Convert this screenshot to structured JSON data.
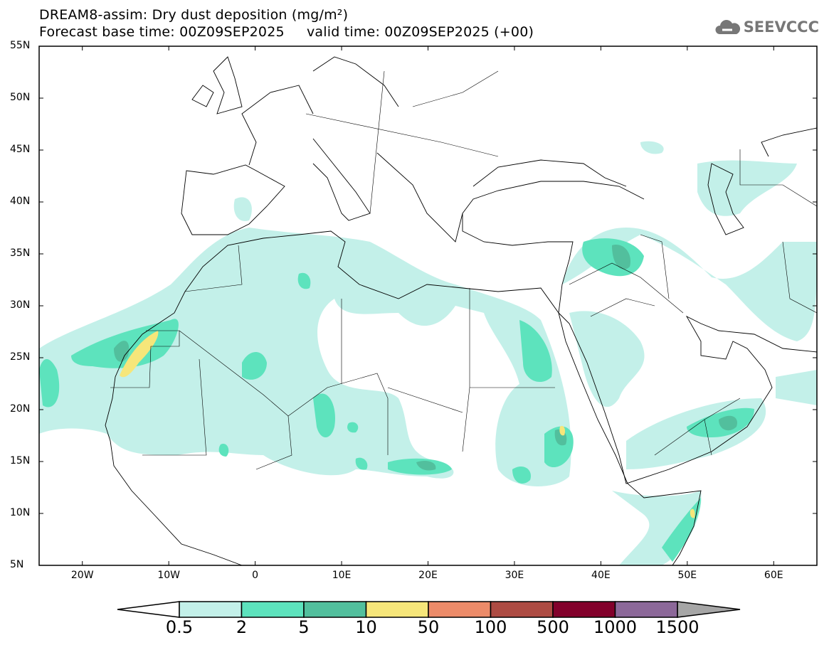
{
  "header": {
    "title": "DREAM8-assim: Dry dust deposition (mg/m²)",
    "subtitle": "Forecast base time: 00Z09SEP2025     valid time: 00Z09SEP2025 (+00)",
    "logo_text": "SEEVCCC"
  },
  "map": {
    "lat_labels": [
      "55N",
      "50N",
      "45N",
      "40N",
      "35N",
      "30N",
      "25N",
      "20N",
      "15N",
      "10N",
      "5N"
    ],
    "lon_labels": [
      "20W",
      "10W",
      "0",
      "10E",
      "20E",
      "30E",
      "40E",
      "50E",
      "60E"
    ],
    "lon_range": [
      -25,
      65
    ],
    "lat_range": [
      5,
      55
    ]
  },
  "legend": {
    "labels": [
      "0.5",
      "2",
      "5",
      "10",
      "50",
      "100",
      "500",
      "1000",
      "1500"
    ],
    "colors": [
      "#c3f0e9",
      "#5de3bd",
      "#52bf9d",
      "#f6e67a",
      "#ec8b69",
      "#ad4b43",
      "#82002b",
      "#8c6899"
    ],
    "under_color": "#ffffff",
    "over_color": "#a6a6a6"
  }
}
